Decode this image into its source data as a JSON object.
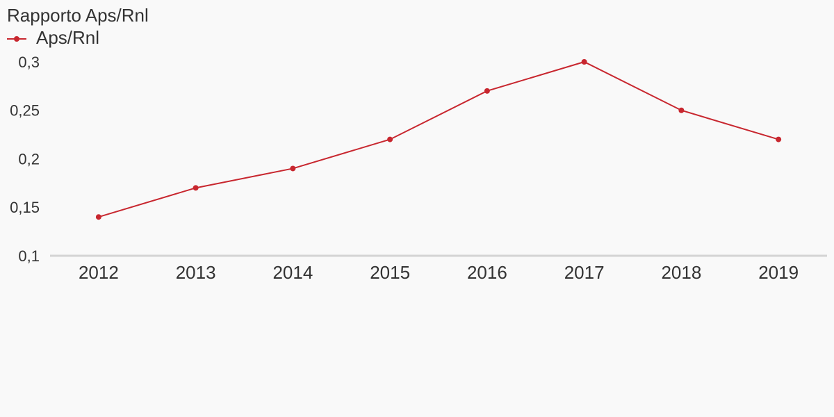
{
  "chart_data": {
    "type": "line",
    "title": "Rapporto Aps/Rnl",
    "categories": [
      "2012",
      "2013",
      "2014",
      "2015",
      "2016",
      "2017",
      "2018",
      "2019"
    ],
    "series": [
      {
        "name": "Aps/Rnl",
        "color": "#c8272f",
        "values": [
          0.14,
          0.17,
          0.19,
          0.22,
          0.27,
          0.3,
          0.25,
          0.22
        ]
      }
    ],
    "ylim": [
      0.1,
      0.3
    ],
    "yticks": [
      {
        "value": 0.1,
        "label": "0,1"
      },
      {
        "value": 0.15,
        "label": "0,15"
      },
      {
        "value": 0.2,
        "label": "0,2"
      },
      {
        "value": 0.25,
        "label": "0,25"
      },
      {
        "value": 0.3,
        "label": "0,3"
      }
    ],
    "grid": false,
    "legend": "top-left"
  }
}
